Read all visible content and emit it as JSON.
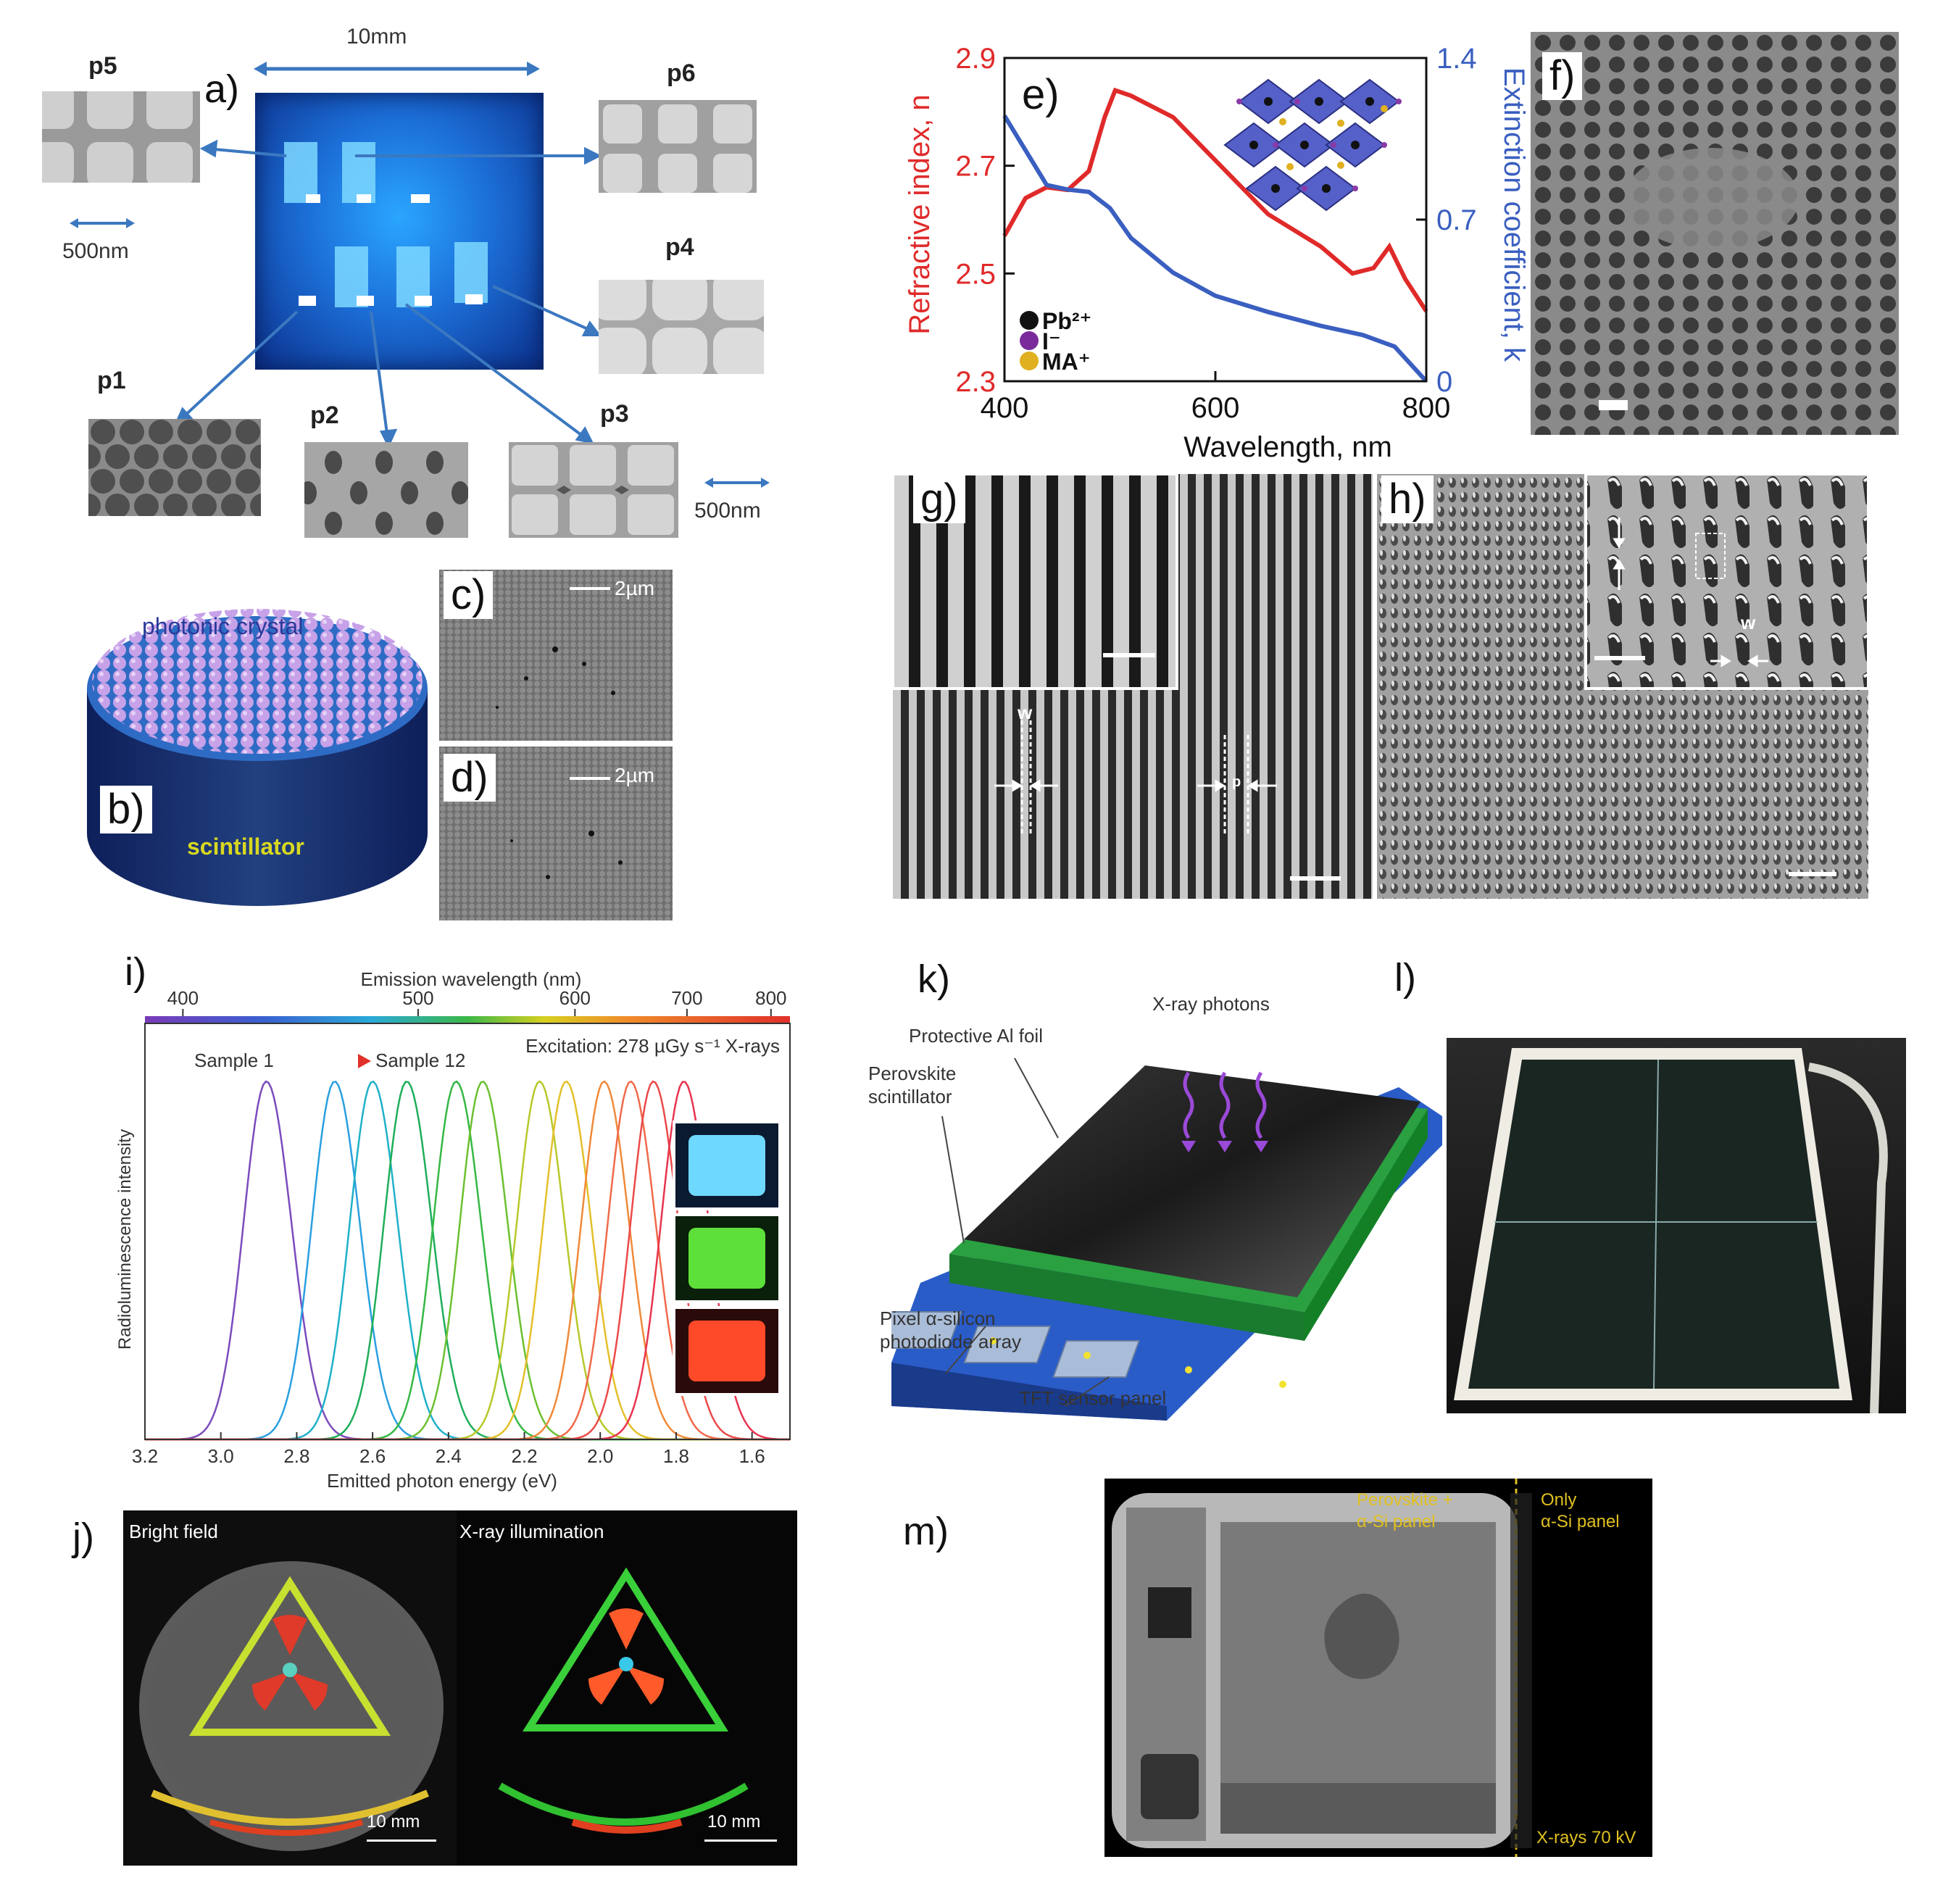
{
  "panel_a": {
    "label": "a)",
    "scale_top": "10mm",
    "scale_left": "500nm",
    "scale_right": "500nm",
    "tags": [
      "p5",
      "p6",
      "p4",
      "p1",
      "p2",
      "p3"
    ]
  },
  "panel_b": {
    "label": "b)",
    "top_text": "photonic crystal",
    "bottom_text": "scintillator"
  },
  "panel_c": {
    "label": "c)",
    "scale": "2µm"
  },
  "panel_d": {
    "label": "d)",
    "scale": "2µm"
  },
  "panel_e": {
    "label": "e)",
    "legend": [
      "Pb²⁺",
      "I⁻",
      "MA⁺"
    ],
    "legend_colors": [
      "#111111",
      "#7a2a9a",
      "#e0b020"
    ],
    "colors": {
      "n": "#e02a2a",
      "k": "#3a5fc0"
    }
  },
  "panel_f": {
    "label": "f)"
  },
  "panel_g": {
    "label": "g)",
    "w": "w",
    "p": "p"
  },
  "panel_h": {
    "label": "h)",
    "w": "w"
  },
  "panel_i": {
    "label": "i)",
    "top_axis_title": "Emission wavelength (nm)",
    "top_ticks": [
      "400",
      "500",
      "600",
      "700",
      "800"
    ],
    "excitation": "Excitation: 278 µGy s⁻¹ X-rays",
    "sample_start": "Sample 1",
    "sample_end": "Sample 12"
  },
  "panel_j": {
    "label": "j)",
    "left_title": "Bright field",
    "right_title": "X-ray illumination",
    "scale_left": "10 mm",
    "scale_right": "10 mm"
  },
  "panel_k": {
    "label": "k)",
    "xray": "X-ray photons",
    "foil": "Protective Al foil",
    "perov1": "Perovskite",
    "perov2": "scintillator",
    "pixel1": "Pixel α-silicon",
    "pixel2": "photodiode array",
    "tft": "TFT sensor panel"
  },
  "panel_l": {
    "label": "l)"
  },
  "panel_m": {
    "label": "m)",
    "left1": "Perovskite +",
    "left2": "α-Si panel",
    "right1": "Only",
    "right2": "α-Si panel",
    "kv": "X-rays 70 kV"
  },
  "chart_data": [
    {
      "type": "line",
      "panel": "e",
      "xlabel": "Wavelength, nm",
      "ylabel": "Refractive index, n",
      "y2label": "Extinction coefficient, k",
      "xlim": [
        400,
        800
      ],
      "ylim": [
        2.3,
        2.9
      ],
      "y2lim": [
        0,
        1.4
      ],
      "xticks": [
        "400",
        "600",
        "800"
      ],
      "yticks": [
        "2.3",
        "2.5",
        "2.7",
        "2.9"
      ],
      "y2ticks": [
        "0",
        "0.7",
        "1.4"
      ],
      "series": [
        {
          "x": [
            400,
            420,
            440,
            460,
            480,
            495,
            505,
            520,
            560,
            600,
            650,
            700,
            730,
            750,
            765,
            780,
            800
          ],
          "y": [
            2.57,
            2.64,
            2.66,
            2.655,
            2.69,
            2.79,
            2.84,
            2.83,
            2.79,
            2.71,
            2.61,
            2.55,
            2.5,
            2.51,
            2.55,
            2.49,
            2.43
          ]
        },
        {
          "x": [
            400,
            420,
            440,
            460,
            480,
            500,
            520,
            560,
            600,
            650,
            700,
            740,
            770,
            790,
            800
          ],
          "y2": [
            1.15,
            1.0,
            0.85,
            0.83,
            0.82,
            0.75,
            0.62,
            0.47,
            0.37,
            0.3,
            0.24,
            0.2,
            0.15,
            0.05,
            0.0
          ]
        }
      ]
    },
    {
      "type": "line",
      "panel": "i",
      "xlabel": "Emitted photon energy (eV)",
      "ylabel": "Radioluminescence intensity",
      "xlim": [
        3.2,
        1.5
      ],
      "xticks": [
        "3.2",
        "3.0",
        "2.8",
        "2.6",
        "2.4",
        "2.2",
        "2.0",
        "1.8",
        "1.6"
      ],
      "series": [
        {
          "center": 2.88,
          "color": "#7b4bbd"
        },
        {
          "center": 2.7,
          "color": "#2a9fe0"
        },
        {
          "center": 2.6,
          "color": "#1fb0c8"
        },
        {
          "center": 2.51,
          "color": "#1fae5a"
        },
        {
          "center": 2.38,
          "color": "#35b845"
        },
        {
          "center": 2.31,
          "color": "#6cc030"
        },
        {
          "center": 2.16,
          "color": "#b7c82a"
        },
        {
          "center": 2.09,
          "color": "#e3c02a"
        },
        {
          "center": 1.99,
          "color": "#f08a3a"
        },
        {
          "center": 1.92,
          "color": "#f06a4a"
        },
        {
          "center": 1.86,
          "color": "#ec4a4a"
        },
        {
          "center": 1.78,
          "color": "#e8344e"
        }
      ]
    }
  ]
}
